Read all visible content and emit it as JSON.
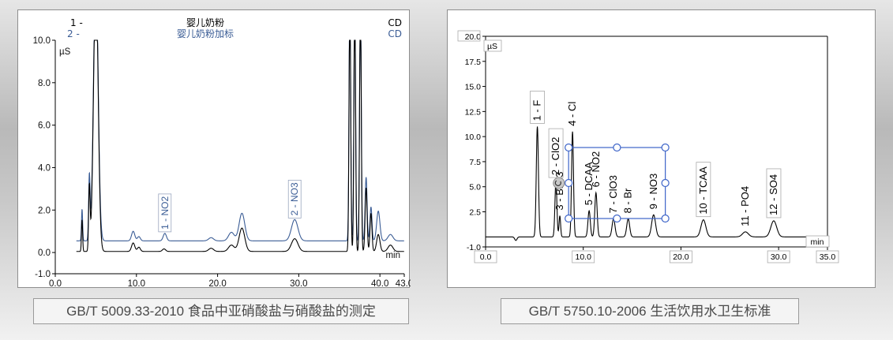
{
  "captions": {
    "left": "GB/T 5009.33-2010 食品中亚硝酸盐与硝酸盐的测定",
    "right": "GB/T 5750.10-2006 生活饮用水卫生标准"
  },
  "chart_data": [
    {
      "type": "line",
      "ylabel": "µS",
      "xlabel": "min",
      "xlim": [
        0,
        43
      ],
      "ylim": [
        -1,
        10
      ],
      "x_ticks": [
        "0.0",
        "10.0",
        "20.0",
        "30.0",
        "40.0",
        "43.0"
      ],
      "x_tick_values": [
        0,
        10,
        20,
        30,
        40,
        43
      ],
      "y_ticks": [
        "10.0",
        "8.0",
        "6.0",
        "4.0",
        "2.0",
        "0.0",
        "-1.0"
      ],
      "y_tick_values": [
        10,
        8,
        6,
        4,
        2,
        0,
        -1
      ],
      "series": [
        {
          "index": "1 -",
          "name": "婴儿奶粉",
          "detector": "CD",
          "color": "#000000",
          "baseline": 0.05,
          "peaks": [
            [
              3.3,
              1.5,
              0.07
            ],
            [
              4.2,
              3,
              0.09
            ],
            [
              5.0,
              13,
              0.28
            ],
            [
              9.6,
              0.4,
              0.2
            ],
            [
              10.3,
              0.2,
              0.18
            ],
            [
              13.4,
              0.12,
              0.2
            ],
            [
              19.2,
              0.15,
              0.3
            ],
            [
              21.7,
              0.3,
              0.35
            ],
            [
              23.0,
              1.1,
              0.35
            ],
            [
              29.5,
              0.6,
              0.4
            ],
            [
              36.3,
              12,
              0.1
            ],
            [
              36.9,
              12,
              0.1
            ],
            [
              37.6,
              12,
              0.1
            ],
            [
              38.3,
              3,
              0.12
            ],
            [
              38.9,
              1.8,
              0.12
            ],
            [
              39.8,
              0.8,
              0.2
            ],
            [
              41.3,
              0.3,
              0.3
            ]
          ]
        },
        {
          "index": "2 -",
          "name": "婴儿奶粉加标",
          "detector": "CD",
          "color": "#3a5c95",
          "baseline": 0.55,
          "peaks": [
            [
              3.3,
              1.5,
              0.07
            ],
            [
              4.2,
              3,
              0.09
            ],
            [
              5.0,
              13,
              0.28
            ],
            [
              9.6,
              0.45,
              0.2
            ],
            [
              10.3,
              0.2,
              0.18
            ],
            [
              13.5,
              0.35,
              0.2
            ],
            [
              19.2,
              0.15,
              0.3
            ],
            [
              21.7,
              0.4,
              0.35
            ],
            [
              23.0,
              1.3,
              0.35
            ],
            [
              29.5,
              1.0,
              0.4
            ],
            [
              36.3,
              12,
              0.1
            ],
            [
              36.9,
              12,
              0.1
            ],
            [
              37.6,
              12,
              0.1
            ],
            [
              38.3,
              3,
              0.12
            ],
            [
              38.9,
              1.6,
              0.12
            ],
            [
              39.8,
              1.4,
              0.2
            ],
            [
              41.3,
              0.3,
              0.3
            ]
          ]
        }
      ],
      "peak_labels": [
        {
          "text": "1 - NO2",
          "x": 13.5,
          "y": 0.9
        },
        {
          "text": "2 - NO3",
          "x": 29.5,
          "y": 1.55
        }
      ]
    },
    {
      "type": "line",
      "ylabel": "µS",
      "xlabel": "min",
      "xlim": [
        0,
        35
      ],
      "ylim": [
        -1,
        20
      ],
      "x_ticks": [
        "0.0",
        "10.0",
        "20.0",
        "30.0",
        "35.0"
      ],
      "x_tick_values": [
        0,
        10,
        20,
        30,
        35
      ],
      "y_ticks": [
        "20.0",
        "17.5",
        "15.0",
        "12.5",
        "10.0",
        "7.5",
        "5.0",
        "2.5",
        "-1.0"
      ],
      "y_tick_values": [
        20,
        17.5,
        15,
        12.5,
        10,
        7.5,
        5,
        2.5,
        -1
      ],
      "color": "#000000",
      "baseline": 0,
      "dip": [
        3.1,
        -0.35,
        0.12
      ],
      "peaks": [
        {
          "label": "1 - F",
          "x": 5.3,
          "height": 11,
          "width": 0.11
        },
        {
          "label": "2 - ClO2",
          "x": 7.2,
          "height": 5.6,
          "width": 0.1
        },
        {
          "label": "3 - BrO3",
          "x": 7.6,
          "height": 2.1,
          "width": 0.08
        },
        {
          "label": "4 - Cl",
          "x": 8.9,
          "height": 10.5,
          "width": 0.1
        },
        {
          "label": "5 - DCAA",
          "x": 10.6,
          "height": 2.6,
          "width": 0.12
        },
        {
          "label": "6 - NO2",
          "x": 11.3,
          "height": 4.4,
          "width": 0.12
        },
        {
          "label": "7 - ClO3",
          "x": 13.1,
          "height": 1.8,
          "width": 0.15
        },
        {
          "label": "8 - Br",
          "x": 14.6,
          "height": 1.8,
          "width": 0.15
        },
        {
          "label": "9 - NO3",
          "x": 17.2,
          "height": 2.2,
          "width": 0.2
        },
        {
          "label": "10 - TCAA",
          "x": 22.3,
          "height": 1.7,
          "width": 0.25
        },
        {
          "label": "11 - PO4",
          "x": 26.6,
          "height": 0.5,
          "width": 0.3
        },
        {
          "label": "12 - SO4",
          "x": 29.5,
          "height": 1.6,
          "width": 0.3
        }
      ]
    }
  ]
}
